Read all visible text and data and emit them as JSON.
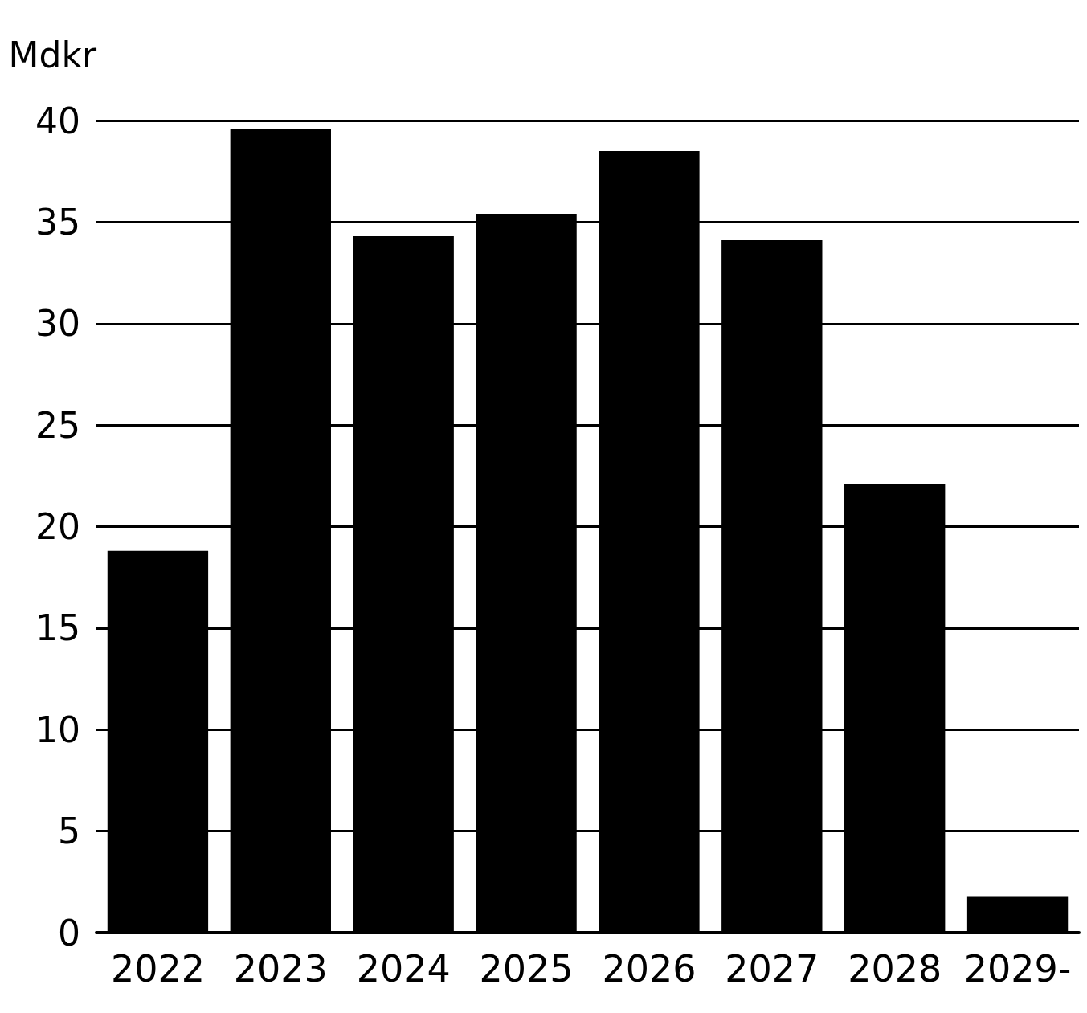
{
  "chart_data": {
    "type": "bar",
    "ylabel": "Mdkr",
    "categories": [
      "2022",
      "2023",
      "2024",
      "2025",
      "2026",
      "2027",
      "2028",
      "2029-"
    ],
    "values": [
      18.8,
      39.6,
      34.3,
      35.4,
      38.5,
      34.1,
      22.1,
      1.8
    ],
    "color": "#000000",
    "ylim": [
      0,
      40
    ],
    "yticks": [
      0,
      5,
      10,
      15,
      20,
      25,
      30,
      35,
      40
    ],
    "grid": "y"
  }
}
